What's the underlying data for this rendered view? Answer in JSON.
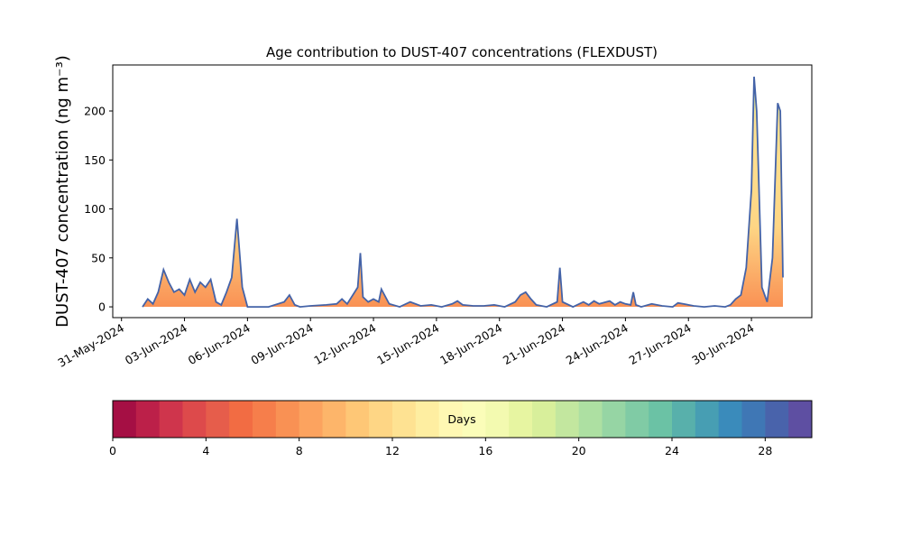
{
  "chart_data": {
    "type": "area",
    "title": "Age contribution to DUST-407 concentrations (FLEXDUST)",
    "y_label": "DUST-407 concentration (ng m⁻³)",
    "x": [
      "2024-06-01T00:00",
      "2024-06-01T06:00",
      "2024-06-01T12:00",
      "2024-06-01T18:00",
      "2024-06-02T00:00",
      "2024-06-02T06:00",
      "2024-06-02T12:00",
      "2024-06-02T18:00",
      "2024-06-03T00:00",
      "2024-06-03T06:00",
      "2024-06-03T12:00",
      "2024-06-03T18:00",
      "2024-06-04T00:00",
      "2024-06-04T06:00",
      "2024-06-04T12:00",
      "2024-06-04T18:00",
      "2024-06-05T00:00",
      "2024-06-05T06:00",
      "2024-06-05T12:00",
      "2024-06-05T18:00",
      "2024-06-06T00:00",
      "2024-06-07T00:00",
      "2024-06-07T18:00",
      "2024-06-08T00:00",
      "2024-06-08T06:00",
      "2024-06-08T12:00",
      "2024-06-09T00:00",
      "2024-06-09T18:00",
      "2024-06-10T06:00",
      "2024-06-10T12:00",
      "2024-06-10T18:00",
      "2024-06-11T06:00",
      "2024-06-11T09:00",
      "2024-06-11T12:00",
      "2024-06-11T18:00",
      "2024-06-12T00:00",
      "2024-06-12T06:00",
      "2024-06-12T09:00",
      "2024-06-12T18:00",
      "2024-06-13T06:00",
      "2024-06-13T18:00",
      "2024-06-14T06:00",
      "2024-06-14T18:00",
      "2024-06-15T06:00",
      "2024-06-15T18:00",
      "2024-06-16T00:00",
      "2024-06-16T06:00",
      "2024-06-16T18:00",
      "2024-06-17T06:00",
      "2024-06-17T18:00",
      "2024-06-18T06:00",
      "2024-06-18T18:00",
      "2024-06-19T00:00",
      "2024-06-19T06:00",
      "2024-06-19T12:00",
      "2024-06-19T18:00",
      "2024-06-20T06:00",
      "2024-06-20T18:00",
      "2024-06-20T21:00",
      "2024-06-21T00:00",
      "2024-06-21T12:00",
      "2024-06-22T00:00",
      "2024-06-22T06:00",
      "2024-06-22T12:00",
      "2024-06-22T18:00",
      "2024-06-23T06:00",
      "2024-06-23T12:00",
      "2024-06-23T18:00",
      "2024-06-24T00:00",
      "2024-06-24T06:00",
      "2024-06-24T09:00",
      "2024-06-24T12:00",
      "2024-06-24T18:00",
      "2024-06-25T06:00",
      "2024-06-25T18:00",
      "2024-06-26T06:00",
      "2024-06-26T12:00",
      "2024-06-26T18:00",
      "2024-06-27T06:00",
      "2024-06-27T18:00",
      "2024-06-28T06:00",
      "2024-06-28T18:00",
      "2024-06-29T00:00",
      "2024-06-29T06:00",
      "2024-06-29T12:00",
      "2024-06-29T18:00",
      "2024-06-30T00:00",
      "2024-06-30T03:00",
      "2024-06-30T06:00",
      "2024-06-30T12:00",
      "2024-06-30T18:00",
      "2024-07-01T00:00",
      "2024-07-01T06:00",
      "2024-07-01T09:00",
      "2024-07-01T12:00"
    ],
    "values": [
      0,
      8,
      3,
      15,
      38,
      25,
      15,
      18,
      12,
      28,
      15,
      25,
      20,
      28,
      5,
      2,
      15,
      30,
      90,
      20,
      0,
      0,
      5,
      12,
      2,
      0,
      1,
      2,
      3,
      8,
      3,
      20,
      55,
      10,
      5,
      8,
      5,
      18,
      3,
      0,
      5,
      1,
      2,
      0,
      3,
      6,
      2,
      1,
      1,
      2,
      0,
      5,
      12,
      15,
      8,
      2,
      0,
      5,
      40,
      5,
      0,
      5,
      2,
      6,
      3,
      6,
      2,
      5,
      3,
      2,
      15,
      2,
      0,
      3,
      1,
      0,
      4,
      3,
      1,
      0,
      1,
      0,
      2,
      8,
      12,
      40,
      120,
      235,
      200,
      20,
      5,
      50,
      208,
      200,
      30
    ],
    "color": "#4463a8",
    "xlim": [
      "2024-05-30T14:00",
      "2024-07-02T21:00"
    ],
    "xticks": [
      {
        "value": "2024-05-31",
        "label": "31-May-2024"
      },
      {
        "value": "2024-06-03",
        "label": "03-Jun-2024"
      },
      {
        "value": "2024-06-06",
        "label": "06-Jun-2024"
      },
      {
        "value": "2024-06-09",
        "label": "09-Jun-2024"
      },
      {
        "value": "2024-06-12",
        "label": "12-Jun-2024"
      },
      {
        "value": "2024-06-15",
        "label": "15-Jun-2024"
      },
      {
        "value": "2024-06-18",
        "label": "18-Jun-2024"
      },
      {
        "value": "2024-06-21",
        "label": "21-Jun-2024"
      },
      {
        "value": "2024-06-24",
        "label": "24-Jun-2024"
      },
      {
        "value": "2024-06-27",
        "label": "27-Jun-2024"
      },
      {
        "value": "2024-06-30",
        "label": "30-Jun-2024"
      }
    ],
    "ylim": [
      -11,
      247
    ],
    "yticks": [
      0,
      50,
      100,
      150,
      200
    ],
    "colorbar": {
      "label": "Days",
      "lim": [
        0,
        30
      ],
      "ticks": [
        0,
        4,
        8,
        12,
        16,
        20,
        24,
        28
      ],
      "colors": [
        "#a50f44",
        "#bc2049",
        "#cf354c",
        "#dd4a4b",
        "#e65d4b",
        "#f26c43",
        "#f67e4b",
        "#f99154",
        "#fca35f",
        "#fdb56a",
        "#fec776",
        "#fed685",
        "#fee292",
        "#feeea1",
        "#fff8b3",
        "#fbfdb9",
        "#f3fab0",
        "#e7f5a1",
        "#d8ef9b",
        "#c3e79f",
        "#ade0a2",
        "#96d5a4",
        "#80cba5",
        "#6bc2a5",
        "#58b0ab",
        "#479eb3",
        "#3a8bbb",
        "#3f77b5",
        "#4963ab",
        "#5e4fa2"
      ]
    }
  }
}
